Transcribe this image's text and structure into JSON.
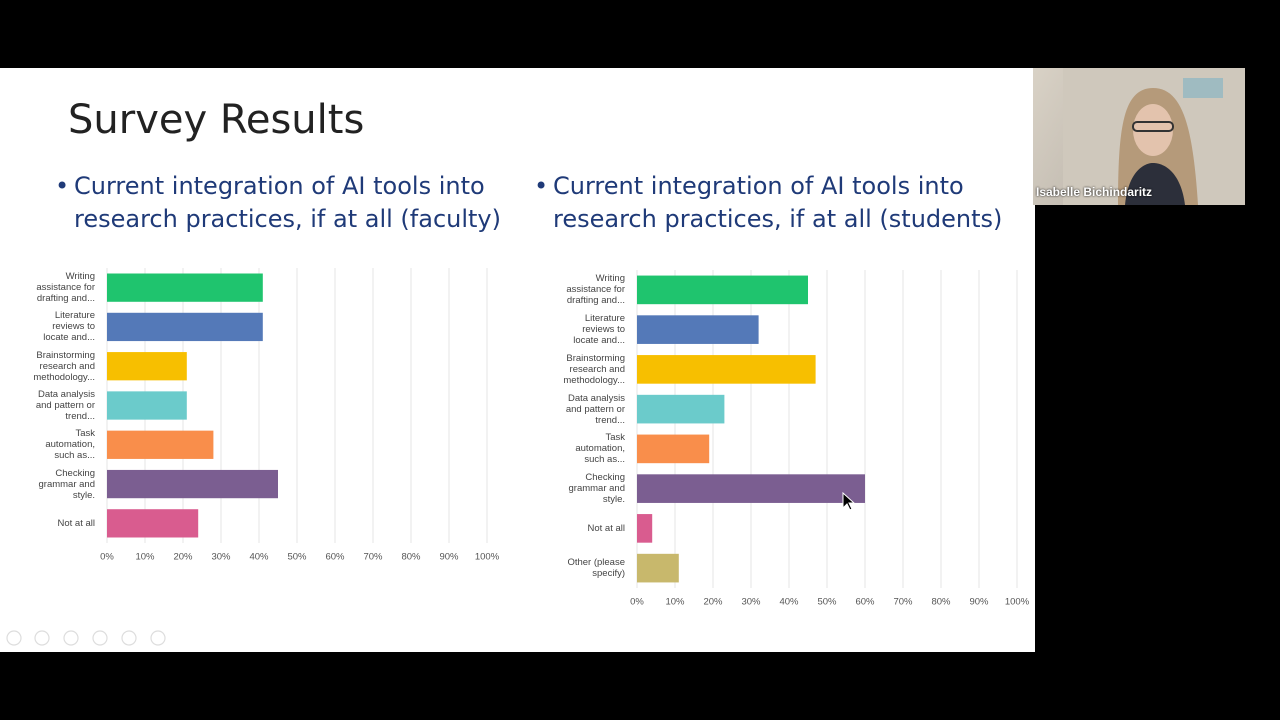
{
  "slide": {
    "title": "Survey Results",
    "bullets": [
      "Current integration of AI tools into research practices, if at all (faculty)",
      "Current integration of AI tools into research practices, if at all (students)"
    ]
  },
  "participant": {
    "name": "Isabelle Bichindaritz"
  },
  "chart_data": [
    {
      "type": "barh",
      "categories": [
        "Writing assistance for drafting and...",
        "Literature reviews to locate and...",
        "Brainstorming research and methodology...",
        "Data analysis and pattern or trend...",
        "Task automation, such as...",
        "Checking grammar and style.",
        "Not at all"
      ],
      "values": [
        41,
        41,
        21,
        21,
        28,
        45,
        24
      ],
      "colors": [
        "#1fc46e",
        "#5479b8",
        "#f7bf00",
        "#6bcbcb",
        "#f98e4b",
        "#7b5e91",
        "#d95c8f"
      ],
      "xlim": [
        0,
        100
      ],
      "xticks": [
        {
          "value": 0,
          "label": "0%"
        },
        {
          "value": 10,
          "label": "10%"
        },
        {
          "value": 20,
          "label": "20%"
        },
        {
          "value": 30,
          "label": "30%"
        },
        {
          "value": 40,
          "label": "40%"
        },
        {
          "value": 50,
          "label": "50%"
        },
        {
          "value": 60,
          "label": "60%"
        },
        {
          "value": 70,
          "label": "70%"
        },
        {
          "value": 80,
          "label": "80%"
        },
        {
          "value": 90,
          "label": "90%"
        },
        {
          "value": 100,
          "label": "100%"
        }
      ],
      "grid": true
    },
    {
      "type": "barh",
      "categories": [
        "Writing assistance for drafting and...",
        "Literature reviews to locate and...",
        "Brainstorming research and methodology...",
        "Data analysis and pattern or trend...",
        "Task automation, such as...",
        "Checking grammar and style.",
        "Not at all",
        "Other (please specify)"
      ],
      "values": [
        45,
        32,
        47,
        23,
        19,
        60,
        4,
        11
      ],
      "colors": [
        "#1fc46e",
        "#5479b8",
        "#f7bf00",
        "#6bcbcb",
        "#f98e4b",
        "#7b5e91",
        "#d95c8f",
        "#c8b86c"
      ],
      "xlim": [
        0,
        100
      ],
      "xticks": [
        {
          "value": 0,
          "label": "0%"
        },
        {
          "value": 10,
          "label": "10%"
        },
        {
          "value": 20,
          "label": "20%"
        },
        {
          "value": 30,
          "label": "30%"
        },
        {
          "value": 40,
          "label": "40%"
        },
        {
          "value": 50,
          "label": "50%"
        },
        {
          "value": 60,
          "label": "60%"
        },
        {
          "value": 70,
          "label": "70%"
        },
        {
          "value": 80,
          "label": "80%"
        },
        {
          "value": 90,
          "label": "90%"
        },
        {
          "value": 100,
          "label": "100%"
        }
      ],
      "grid": true
    }
  ]
}
